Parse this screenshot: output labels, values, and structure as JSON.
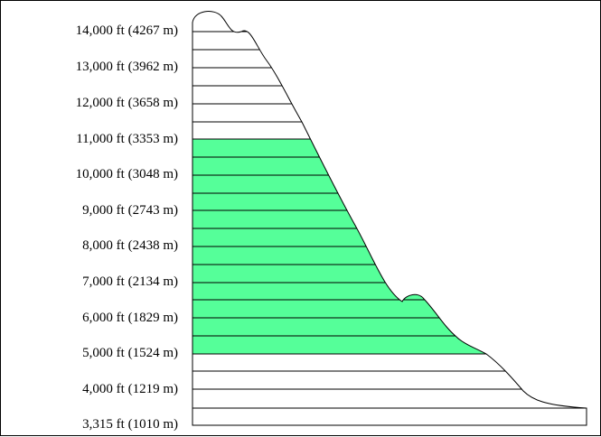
{
  "elevation_labels": {
    "ft14000": "14,000 ft (4267 m)",
    "ft13000": "13,000 ft (3962 m)",
    "ft12000": "12,000 ft (3658 m)",
    "ft11000": "11,000 ft (3353 m)",
    "ft10000": "10,000 ft (3048 m)",
    "ft9000": "9,000 ft (2743 m)",
    "ft8000": "8,000 ft (2438 m)",
    "ft7000": "7,000 ft (2134 m)",
    "ft6000": "6,000 ft (1829 m)",
    "ft5000": "5,000 ft (1524 m)",
    "ft4000": "4,000 ft (1219 m)",
    "base": "3,315 ft (1010 m)"
  },
  "colors": {
    "highlight_band": "#55ff99",
    "outline": "#000000",
    "background": "#ffffff"
  },
  "highlight_range_ft": [
    5000,
    11000
  ]
}
